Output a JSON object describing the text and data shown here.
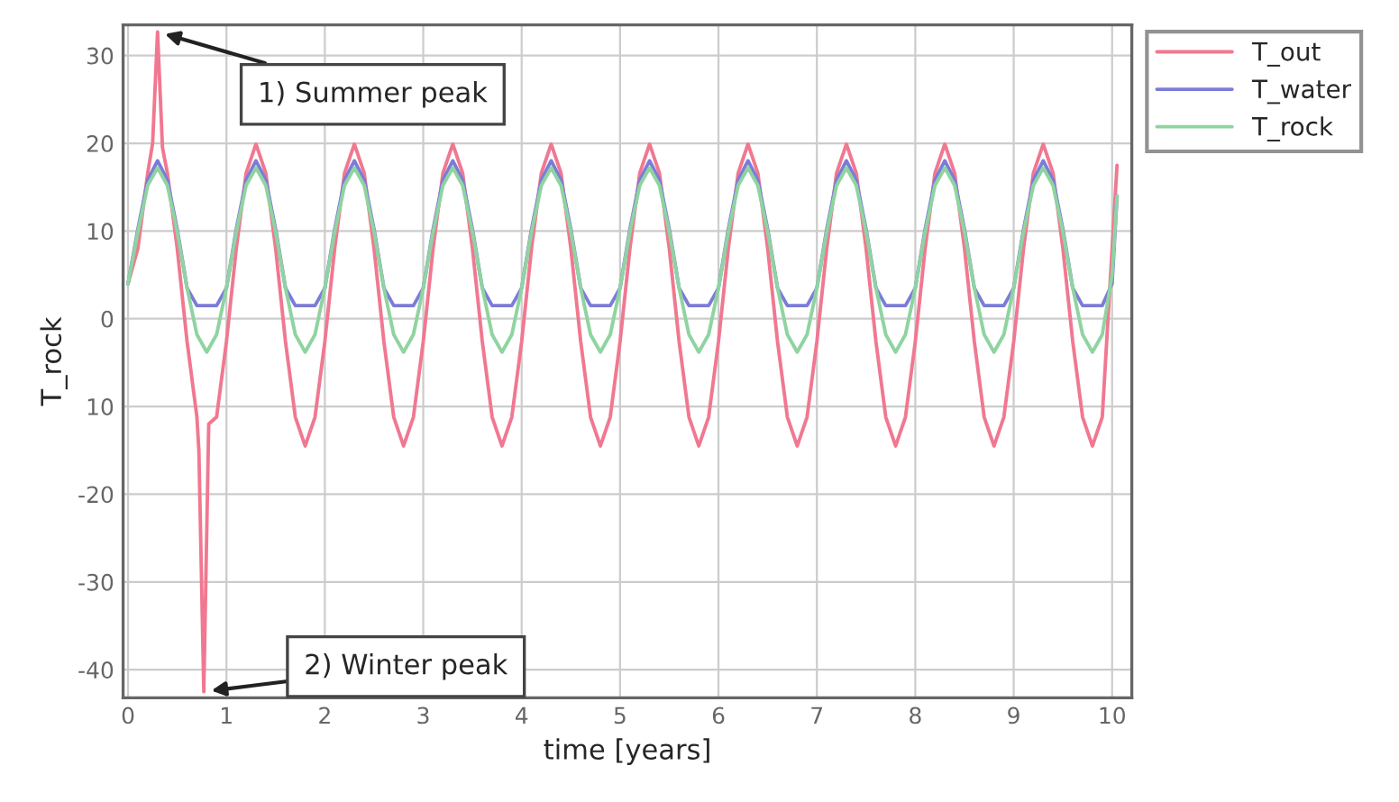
{
  "chart_data": {
    "type": "line",
    "xlabel": "time [years]",
    "ylabel": "T_rock",
    "x": [
      0,
      0.1,
      0.2,
      0.3,
      0.4,
      0.5,
      0.6,
      0.7,
      0.8,
      0.9,
      1,
      1.1,
      1.2,
      1.3,
      1.4,
      1.5,
      1.6,
      1.7,
      1.8,
      1.9,
      2,
      2.1,
      2.2,
      2.3,
      2.4,
      2.5,
      2.6,
      2.7,
      2.8,
      2.9,
      3,
      3.1,
      3.2,
      3.3,
      3.4,
      3.5,
      3.6,
      3.7,
      3.8,
      3.9,
      4,
      4.1,
      4.2,
      4.3,
      4.4,
      4.5,
      4.6,
      4.7,
      4.8,
      4.9,
      5,
      5.1,
      5.2,
      5.3,
      5.4,
      5.5,
      5.6,
      5.7,
      5.8,
      5.9,
      6,
      6.1,
      6.2,
      6.3,
      6.4,
      6.5,
      6.6,
      6.7,
      6.8,
      6.9,
      7,
      7.1,
      7.2,
      7.3,
      7.4,
      7.5,
      7.6,
      7.7,
      7.8,
      7.9,
      8,
      8.1,
      8.2,
      8.3,
      8.4,
      8.5,
      8.6,
      8.7,
      8.8,
      8.9,
      9,
      9.1,
      9.2,
      9.3,
      9.4,
      9.5,
      9.6,
      9.7,
      9.8,
      9.9,
      10,
      10.05
    ],
    "series": [
      {
        "name": "T_out",
        "color": "#f07890",
        "x": [
          0,
          0.1,
          0.2,
          0.25,
          0.3,
          0.35,
          0.4,
          0.5,
          0.6,
          0.7,
          0.72,
          0.77,
          0.82,
          0.9,
          1,
          1.1,
          1.2,
          1.3,
          1.4,
          1.5,
          1.6,
          1.7,
          1.8,
          1.9,
          2,
          2.1,
          2.2,
          2.3,
          2.4,
          2.5,
          2.6,
          2.7,
          2.8,
          2.9,
          3,
          3.1,
          3.2,
          3.3,
          3.4,
          3.5,
          3.6,
          3.7,
          3.8,
          3.9,
          4,
          4.1,
          4.2,
          4.3,
          4.4,
          4.5,
          4.6,
          4.7,
          4.8,
          4.9,
          5,
          5.1,
          5.2,
          5.3,
          5.4,
          5.5,
          5.6,
          5.7,
          5.8,
          5.9,
          6,
          6.1,
          6.2,
          6.3,
          6.4,
          6.5,
          6.6,
          6.7,
          6.8,
          6.9,
          7,
          7.1,
          7.2,
          7.3,
          7.4,
          7.5,
          7.6,
          7.7,
          7.8,
          7.9,
          8,
          8.1,
          8.2,
          8.3,
          8.4,
          8.5,
          8.6,
          8.7,
          8.8,
          8.9,
          9,
          9.1,
          9.2,
          9.3,
          9.4,
          9.5,
          9.6,
          9.7,
          9.8,
          9.9,
          10,
          10.05
        ],
        "values": [
          4,
          8.0,
          16.6,
          20,
          32.7,
          19.5,
          16.6,
          8.0,
          -2.6,
          -11.2,
          -15,
          -42.5,
          -12,
          -11.2,
          -2.6,
          8.0,
          16.6,
          19.9,
          16.6,
          8.0,
          -2.6,
          -11.2,
          -14.5,
          -11.2,
          -2.6,
          8.0,
          16.6,
          19.9,
          16.6,
          8.0,
          -2.6,
          -11.2,
          -14.5,
          -11.2,
          -2.6,
          8.0,
          16.6,
          19.9,
          16.6,
          8.0,
          -2.6,
          -11.2,
          -14.5,
          -11.2,
          -2.6,
          8.0,
          16.6,
          19.9,
          16.6,
          8.0,
          -2.6,
          -11.2,
          -14.5,
          -11.2,
          -2.6,
          8.0,
          16.6,
          19.9,
          16.6,
          8.0,
          -2.6,
          -11.2,
          -14.5,
          -11.2,
          -2.6,
          8.0,
          16.6,
          19.9,
          16.6,
          8.0,
          -2.6,
          -11.2,
          -14.5,
          -11.2,
          -2.6,
          8.0,
          16.6,
          19.9,
          16.6,
          8.0,
          -2.6,
          -11.2,
          -14.5,
          -11.2,
          -2.6,
          8.0,
          16.6,
          19.9,
          16.6,
          8.0,
          -2.6,
          -11.2,
          -14.5,
          -11.2,
          -2.6,
          8.0,
          16.6,
          19.9,
          16.6,
          8.0,
          -2.6,
          -11.2,
          -14.5,
          -11.2,
          8,
          17.5
        ]
      },
      {
        "name": "T_water",
        "color": "#7c7cd8",
        "values": [
          4,
          10.2,
          15.8,
          18.0,
          15.8,
          10.2,
          3.5,
          1.5,
          1.5,
          1.5,
          3.5,
          10.2,
          15.8,
          18.0,
          15.8,
          10.2,
          3.5,
          1.5,
          1.5,
          1.5,
          3.5,
          10.2,
          15.8,
          18.0,
          15.8,
          10.2,
          3.5,
          1.5,
          1.5,
          1.5,
          3.5,
          10.2,
          15.8,
          18.0,
          15.8,
          10.2,
          3.5,
          1.5,
          1.5,
          1.5,
          3.5,
          10.2,
          15.8,
          18.0,
          15.8,
          10.2,
          3.5,
          1.5,
          1.5,
          1.5,
          3.5,
          10.2,
          15.8,
          18.0,
          15.8,
          10.2,
          3.5,
          1.5,
          1.5,
          1.5,
          3.5,
          10.2,
          15.8,
          18.0,
          15.8,
          10.2,
          3.5,
          1.5,
          1.5,
          1.5,
          3.5,
          10.2,
          15.8,
          18.0,
          15.8,
          10.2,
          3.5,
          1.5,
          1.5,
          1.5,
          3.5,
          10.2,
          15.8,
          18.0,
          15.8,
          10.2,
          3.5,
          1.5,
          1.5,
          1.5,
          3.5,
          10.2,
          15.8,
          18.0,
          15.8,
          10.2,
          3.5,
          1.5,
          1.5,
          1.5,
          4,
          14
        ]
      },
      {
        "name": "T_rock",
        "color": "#8fd4a0",
        "values": [
          4,
          9.9,
          15.2,
          17.2,
          15.2,
          9.9,
          3.5,
          -1.8,
          -3.8,
          -1.8,
          3.5,
          9.9,
          15.2,
          17.2,
          15.2,
          9.9,
          3.5,
          -1.8,
          -3.8,
          -1.8,
          3.5,
          9.9,
          15.2,
          17.2,
          15.2,
          9.9,
          3.5,
          -1.8,
          -3.8,
          -1.8,
          3.5,
          9.9,
          15.2,
          17.2,
          15.2,
          9.9,
          3.5,
          -1.8,
          -3.8,
          -1.8,
          3.5,
          9.9,
          15.2,
          17.2,
          15.2,
          9.9,
          3.5,
          -1.8,
          -3.8,
          -1.8,
          3.5,
          9.9,
          15.2,
          17.2,
          15.2,
          9.9,
          3.5,
          -1.8,
          -3.8,
          -1.8,
          3.5,
          9.9,
          15.2,
          17.2,
          15.2,
          9.9,
          3.5,
          -1.8,
          -3.8,
          -1.8,
          3.5,
          9.9,
          15.2,
          17.2,
          15.2,
          9.9,
          3.5,
          -1.8,
          -3.8,
          -1.8,
          3.5,
          9.9,
          15.2,
          17.2,
          15.2,
          9.9,
          3.5,
          -1.8,
          -3.8,
          -1.8,
          3.5,
          9.9,
          15.2,
          17.2,
          15.2,
          9.9,
          3.5,
          -1.8,
          -3.8,
          -1.8,
          5,
          14
        ]
      }
    ],
    "xlim": [
      -0.05,
      10.2
    ],
    "ylim": [
      -43.2,
      33.5
    ],
    "xticks": [
      0,
      1,
      2,
      3,
      4,
      5,
      6,
      7,
      8,
      9,
      10
    ],
    "yticks": [
      -40,
      -30,
      -20,
      {
        "value": -10,
        "label": "10"
      },
      0,
      10,
      20,
      30
    ],
    "annotations": [
      {
        "text": "1) Summer peak",
        "x": 0.3,
        "y": 32.7
      },
      {
        "text": "2) Winter peak",
        "x": 0.77,
        "y": -42.5
      }
    ],
    "grid": true,
    "legend": "top right",
    "marker": "none",
    "line_style": "solid"
  }
}
